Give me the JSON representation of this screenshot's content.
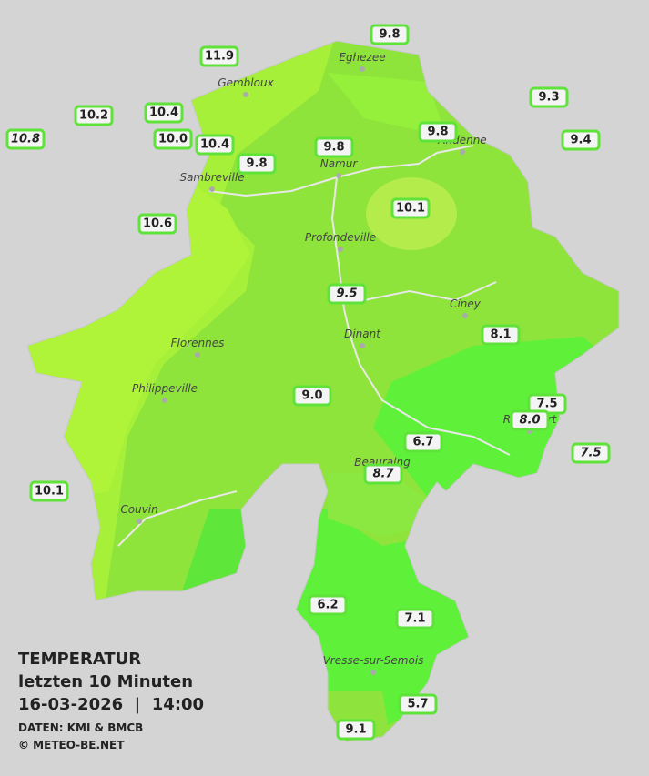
{
  "legend": {
    "title": "TEMPERATUR",
    "period": "letzten 10 Minuten",
    "datetime": "16-03-2026  |  14:00",
    "source": "DATEN: KMI & BMCB",
    "copyright": "© METEO-BE.NET"
  },
  "cities": [
    "Eghezee",
    "Gembloux",
    "Andenne",
    "Namur",
    "Sambreville",
    "Profondeville",
    "Ciney",
    "Dinant",
    "Florennes",
    "Philippeville",
    "Rochefort",
    "Beauraing",
    "Couvin",
    "Vresse-sur-Semois"
  ],
  "stations": [
    "9.8",
    "11.9",
    "9.3",
    "10.2",
    "10.4",
    "10.8",
    "10.0",
    "10.4",
    "9.8",
    "9.8",
    "9.4",
    "9.8",
    "10.1",
    "10.6",
    "9.5",
    "8.1",
    "9.0",
    "7.5",
    "8.0",
    "6.7",
    "7.5",
    "8.7",
    "10.1",
    "6.2",
    "7.1",
    "5.7",
    "9.1"
  ]
}
